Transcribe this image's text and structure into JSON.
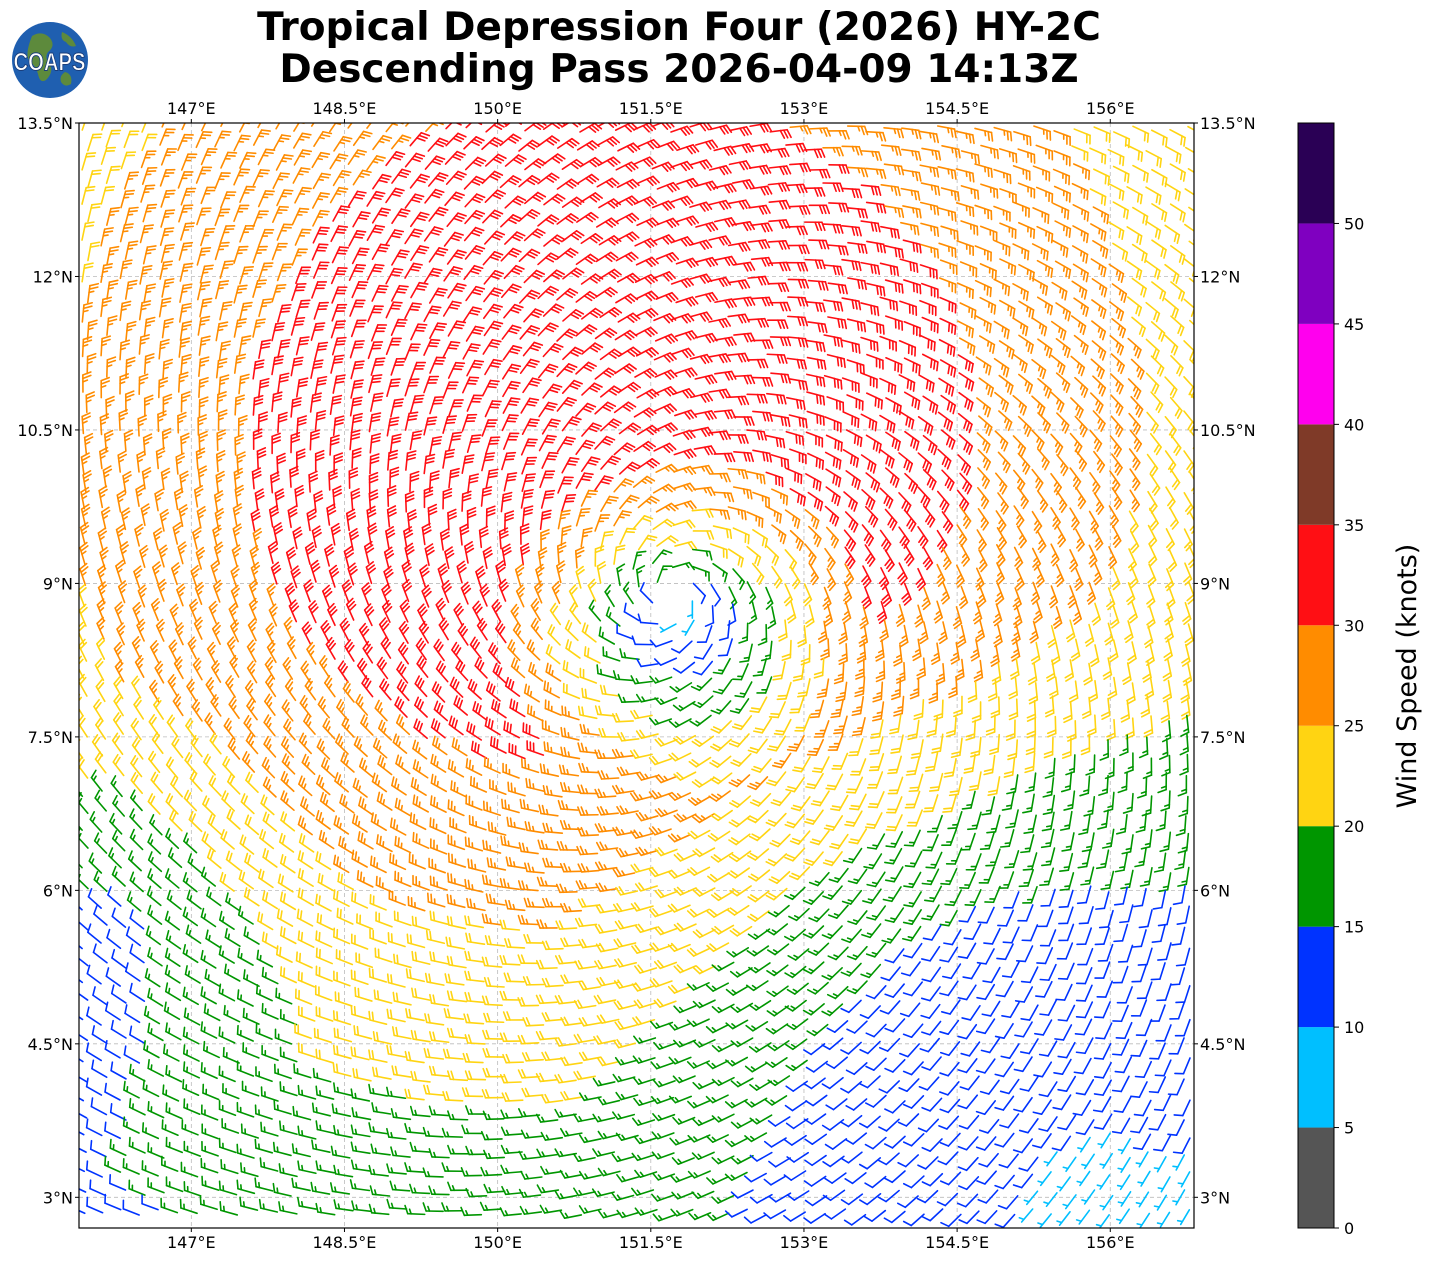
{
  "title": {
    "line1": "Tropical Depression Four (2026) HY-2C",
    "line2": "Descending Pass 2026-04-09 14:13Z"
  },
  "logo": {
    "text": "COAPS",
    "icon": "globe-logo-icon",
    "ocean_color": "#1f5fb0",
    "land_color": "#5d8a3c"
  },
  "map": {
    "lon_range": [
      145.9,
      156.82
    ],
    "lat_range": [
      2.7,
      13.5
    ],
    "lon_ticks": [
      147,
      148.5,
      150,
      151.5,
      153,
      154.5,
      156
    ],
    "lon_tick_labels": [
      "147°E",
      "148.5°E",
      "150°E",
      "151.5°E",
      "153°E",
      "154.5°E",
      "156°E"
    ],
    "lat_ticks": [
      13.5,
      12,
      10.5,
      9,
      7.5,
      6,
      4.5,
      3
    ],
    "lat_tick_labels": [
      "13.5°N",
      "12°N",
      "10.5°N",
      "9°N",
      "7.5°N",
      "6°N",
      "4.5°N",
      "3°N"
    ],
    "grid": "dashed",
    "wind_field": {
      "type": "cyclonic vortex",
      "center_lon": 151.7,
      "center_lat": 8.9,
      "symbol": "wind barbs",
      "units": "knots",
      "max_wind_knots": 34
    }
  },
  "colorbar": {
    "label": "Wind Speed (knots)",
    "tick_labels": [
      "0",
      "5",
      "10",
      "15",
      "20",
      "25",
      "30",
      "35",
      "40",
      "45",
      "50"
    ],
    "bins": [
      {
        "range": [
          0,
          5
        ],
        "color": "#555555"
      },
      {
        "range": [
          5,
          10
        ],
        "color": "#00bfff"
      },
      {
        "range": [
          10,
          15
        ],
        "color": "#0033ff"
      },
      {
        "range": [
          15,
          20
        ],
        "color": "#009600"
      },
      {
        "range": [
          20,
          25
        ],
        "color": "#ffd412"
      },
      {
        "range": [
          25,
          30
        ],
        "color": "#ff8c00"
      },
      {
        "range": [
          30,
          35
        ],
        "color": "#ff0f14"
      },
      {
        "range": [
          35,
          40
        ],
        "color": "#7f3a28"
      },
      {
        "range": [
          40,
          45
        ],
        "color": "#ff00ee"
      },
      {
        "range": [
          45,
          50
        ],
        "color": "#7f00c0"
      },
      {
        "range": [
          50,
          55
        ],
        "color": "#2a0055"
      }
    ]
  }
}
